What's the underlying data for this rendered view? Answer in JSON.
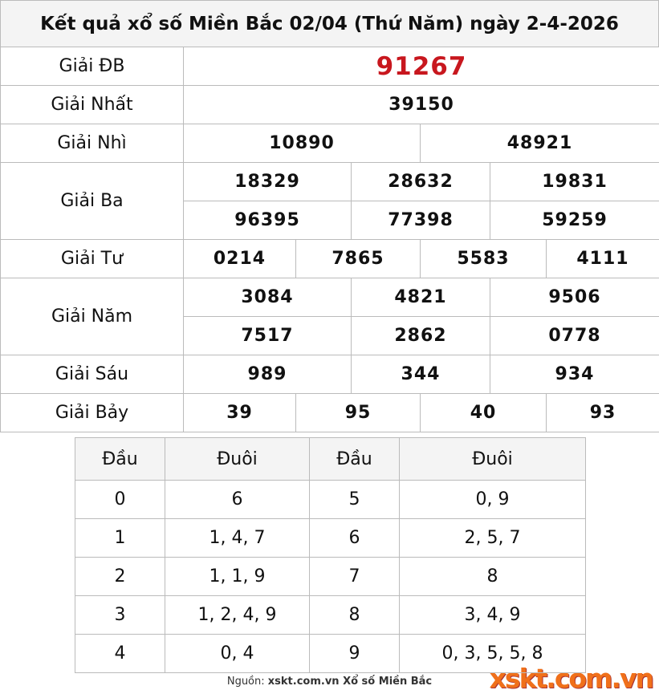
{
  "title": "Kết quả xổ số Miền Bắc 02/04 (Thứ Năm) ngày 2-4-2026",
  "prizes": [
    {
      "label": "Giải ĐB",
      "numbers": [
        [
          "91267"
        ]
      ]
    },
    {
      "label": "Giải Nhất",
      "numbers": [
        [
          "39150"
        ]
      ]
    },
    {
      "label": "Giải Nhì",
      "numbers": [
        [
          "10890",
          "48921"
        ]
      ]
    },
    {
      "label": "Giải Ba",
      "numbers": [
        [
          "18329",
          "28632",
          "19831"
        ],
        [
          "96395",
          "77398",
          "59259"
        ]
      ]
    },
    {
      "label": "Giải Tư",
      "numbers": [
        [
          "0214",
          "7865",
          "5583",
          "4111"
        ]
      ]
    },
    {
      "label": "Giải Năm",
      "numbers": [
        [
          "3084",
          "4821",
          "9506"
        ],
        [
          "7517",
          "2862",
          "0778"
        ]
      ]
    },
    {
      "label": "Giải Sáu",
      "numbers": [
        [
          "989",
          "344",
          "934"
        ]
      ]
    },
    {
      "label": "Giải Bảy",
      "numbers": [
        [
          "39",
          "95",
          "40",
          "93"
        ]
      ]
    }
  ],
  "loto": {
    "headers": [
      "Đầu",
      "Đuôi",
      "Đầu",
      "Đuôi"
    ],
    "rows": [
      [
        "0",
        "6",
        "5",
        "0, 9"
      ],
      [
        "1",
        "1, 4, 7",
        "6",
        "2, 5, 7"
      ],
      [
        "2",
        "1, 1, 9",
        "7",
        "8"
      ],
      [
        "3",
        "1, 2, 4, 9",
        "8",
        "3, 4, 9"
      ],
      [
        "4",
        "0, 4",
        "9",
        "0, 3, 5, 5, 8"
      ]
    ]
  },
  "footer": {
    "source_label": "Nguồn:",
    "source": "xskt.com.vn Xổ số Miền Bắc"
  },
  "logo": "xskt.com.vn"
}
